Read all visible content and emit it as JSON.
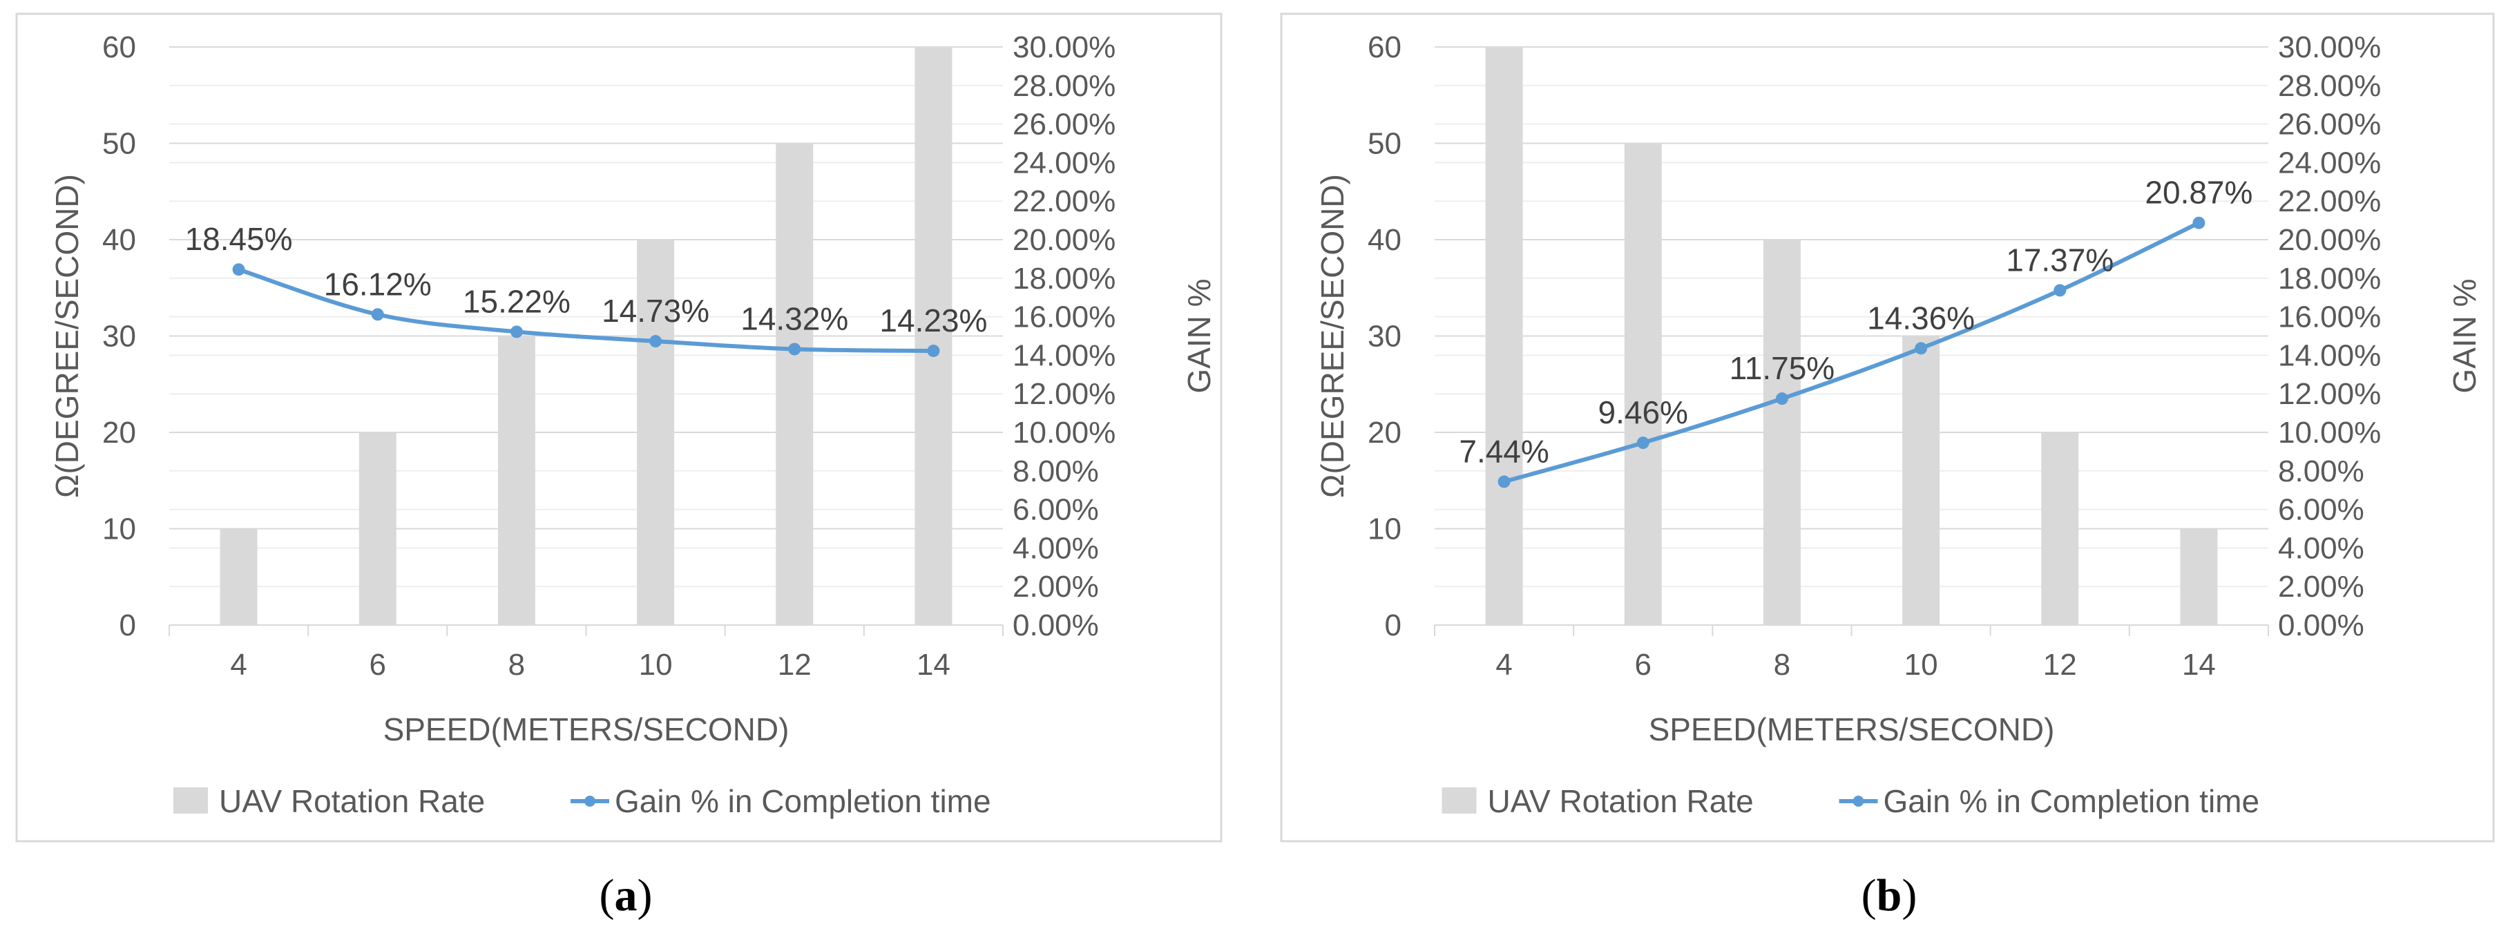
{
  "colors": {
    "bar": "#d9d9d9",
    "line": "#5b9bd5",
    "grid": "#d9d9d9",
    "grid_minor": "#eeeeee",
    "axis_text": "#595959",
    "label_text": "#404040"
  },
  "chart_data": [
    {
      "type": "bar",
      "caption_letter": "a",
      "categories": [
        "4",
        "6",
        "8",
        "10",
        "12",
        "14"
      ],
      "series": [
        {
          "name": "UAV Rotation Rate",
          "type": "bar",
          "axis": "left",
          "values": [
            10,
            20,
            30,
            40,
            50,
            60
          ]
        },
        {
          "name": "Gain % in Completion time",
          "type": "line",
          "axis": "right",
          "values": [
            18.45,
            16.12,
            15.22,
            14.73,
            14.32,
            14.23
          ],
          "labels": [
            "18.45%",
            "16.12%",
            "15.22%",
            "14.73%",
            "14.32%",
            "14.23%"
          ]
        }
      ],
      "xlabel": "SPEED(METERS/SECOND)",
      "ylabel": "Ω(DEGREE/SECOND)",
      "y2label": "GAIN %",
      "ylim": [
        0,
        60
      ],
      "y_ticks": [
        "0",
        "10",
        "20",
        "30",
        "40",
        "50",
        "60"
      ],
      "y2lim": [
        0,
        30
      ],
      "y2_ticks": [
        "0.00%",
        "2.00%",
        "4.00%",
        "6.00%",
        "8.00%",
        "10.00%",
        "12.00%",
        "14.00%",
        "16.00%",
        "18.00%",
        "20.00%",
        "22.00%",
        "24.00%",
        "26.00%",
        "28.00%",
        "30.00%"
      ],
      "legend_position": "bottom",
      "grid": true
    },
    {
      "type": "bar",
      "caption_letter": "b",
      "categories": [
        "4",
        "6",
        "8",
        "10",
        "12",
        "14"
      ],
      "series": [
        {
          "name": "UAV Rotation Rate",
          "type": "bar",
          "axis": "left",
          "values": [
            60,
            50,
            40,
            30,
            20,
            10
          ]
        },
        {
          "name": "Gain % in Completion time",
          "type": "line",
          "axis": "right",
          "values": [
            7.44,
            9.46,
            11.75,
            14.36,
            17.37,
            20.87
          ],
          "labels": [
            "7.44%",
            "9.46%",
            "11.75%",
            "14.36%",
            "17.37%",
            "20.87%"
          ]
        }
      ],
      "xlabel": "SPEED(METERS/SECOND)",
      "ylabel": "Ω(DEGREE/SECOND)",
      "y2label": "GAIN %",
      "ylim": [
        0,
        60
      ],
      "y_ticks": [
        "0",
        "10",
        "20",
        "30",
        "40",
        "50",
        "60"
      ],
      "y2lim": [
        0,
        30
      ],
      "y2_ticks": [
        "0.00%",
        "2.00%",
        "4.00%",
        "6.00%",
        "8.00%",
        "10.00%",
        "12.00%",
        "14.00%",
        "16.00%",
        "18.00%",
        "20.00%",
        "22.00%",
        "24.00%",
        "26.00%",
        "28.00%",
        "30.00%"
      ],
      "legend_position": "bottom",
      "grid": true
    }
  ]
}
